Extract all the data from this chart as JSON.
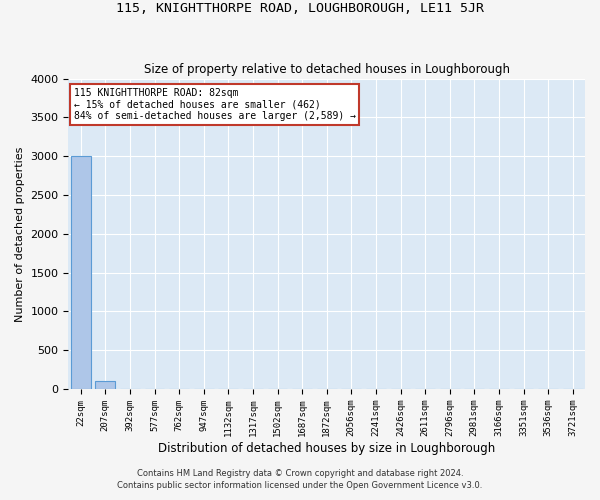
{
  "title": "115, KNIGHTTHORPE ROAD, LOUGHBOROUGH, LE11 5JR",
  "subtitle": "Size of property relative to detached houses in Loughborough",
  "xlabel": "Distribution of detached houses by size in Loughborough",
  "ylabel": "Number of detached properties",
  "footnote1": "Contains HM Land Registry data © Crown copyright and database right 2024.",
  "footnote2": "Contains public sector information licensed under the Open Government Licence v3.0.",
  "bar_labels": [
    "22sqm",
    "207sqm",
    "392sqm",
    "577sqm",
    "762sqm",
    "947sqm",
    "1132sqm",
    "1317sqm",
    "1502sqm",
    "1687sqm",
    "1872sqm",
    "2056sqm",
    "2241sqm",
    "2426sqm",
    "2611sqm",
    "2796sqm",
    "2981sqm",
    "3166sqm",
    "3351sqm",
    "3536sqm",
    "3721sqm"
  ],
  "bar_heights": [
    3000,
    110,
    0,
    0,
    0,
    0,
    0,
    0,
    0,
    0,
    0,
    0,
    0,
    0,
    0,
    0,
    0,
    0,
    0,
    0,
    0
  ],
  "bar_color": "#aec6e8",
  "bar_edge_color": "#5b9bd5",
  "ylim": [
    0,
    4000
  ],
  "yticks": [
    0,
    500,
    1000,
    1500,
    2000,
    2500,
    3000,
    3500,
    4000
  ],
  "annotation_line1": "115 KNIGHTTHORPE ROAD: 82sqm",
  "annotation_line2": "← 15% of detached houses are smaller (462)",
  "annotation_line3": "84% of semi-detached houses are larger (2,589) →",
  "annotation_box_color": "#c0392b",
  "bg_color": "#dce9f5",
  "grid_color": "#ffffff",
  "fig_bg_color": "#f5f5f5"
}
